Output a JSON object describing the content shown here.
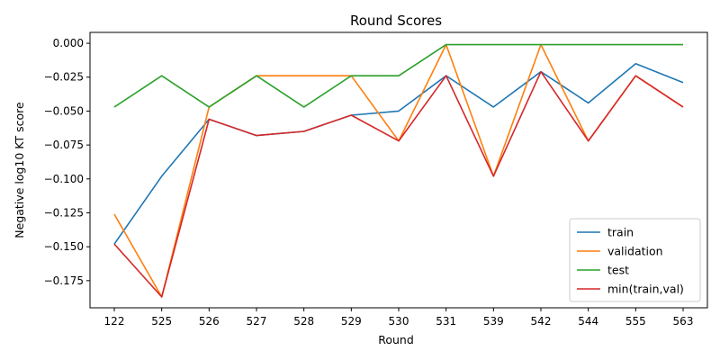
{
  "chart_data": {
    "type": "line",
    "title": "Round Scores",
    "xlabel": "Round",
    "ylabel": "Negative log10 KT score",
    "categories": [
      "122",
      "525",
      "526",
      "527",
      "528",
      "529",
      "530",
      "531",
      "539",
      "542",
      "544",
      "555",
      "563"
    ],
    "ylim": [
      -0.195,
      0.008
    ],
    "yticks": [
      0.0,
      -0.025,
      -0.05,
      -0.075,
      -0.1,
      -0.125,
      -0.15,
      -0.175
    ],
    "ytick_labels": [
      "0.000",
      "−0.025",
      "−0.050",
      "−0.075",
      "−0.100",
      "−0.125",
      "−0.150",
      "−0.175"
    ],
    "grid": false,
    "legend_position": "lower-right",
    "series": [
      {
        "name": "train",
        "color": "#1f77b4",
        "values": [
          -0.148,
          -0.098,
          -0.056,
          -0.068,
          -0.065,
          -0.053,
          -0.05,
          -0.024,
          -0.047,
          -0.021,
          -0.044,
          -0.015,
          -0.029
        ]
      },
      {
        "name": "validation",
        "color": "#ff7f0e",
        "values": [
          -0.126,
          -0.187,
          -0.047,
          -0.024,
          -0.024,
          -0.024,
          -0.072,
          -0.001,
          -0.098,
          -0.001,
          -0.072,
          -0.024,
          -0.047
        ]
      },
      {
        "name": "test",
        "color": "#2ca02c",
        "values": [
          -0.047,
          -0.024,
          -0.047,
          -0.024,
          -0.047,
          -0.024,
          -0.024,
          -0.001,
          -0.001,
          -0.001,
          -0.001,
          -0.001,
          -0.001
        ]
      },
      {
        "name": "min(train,val)",
        "color": "#d62728",
        "values": [
          -0.148,
          -0.187,
          -0.056,
          -0.068,
          -0.065,
          -0.053,
          -0.072,
          -0.024,
          -0.098,
          -0.021,
          -0.072,
          -0.024,
          -0.047
        ]
      }
    ]
  }
}
